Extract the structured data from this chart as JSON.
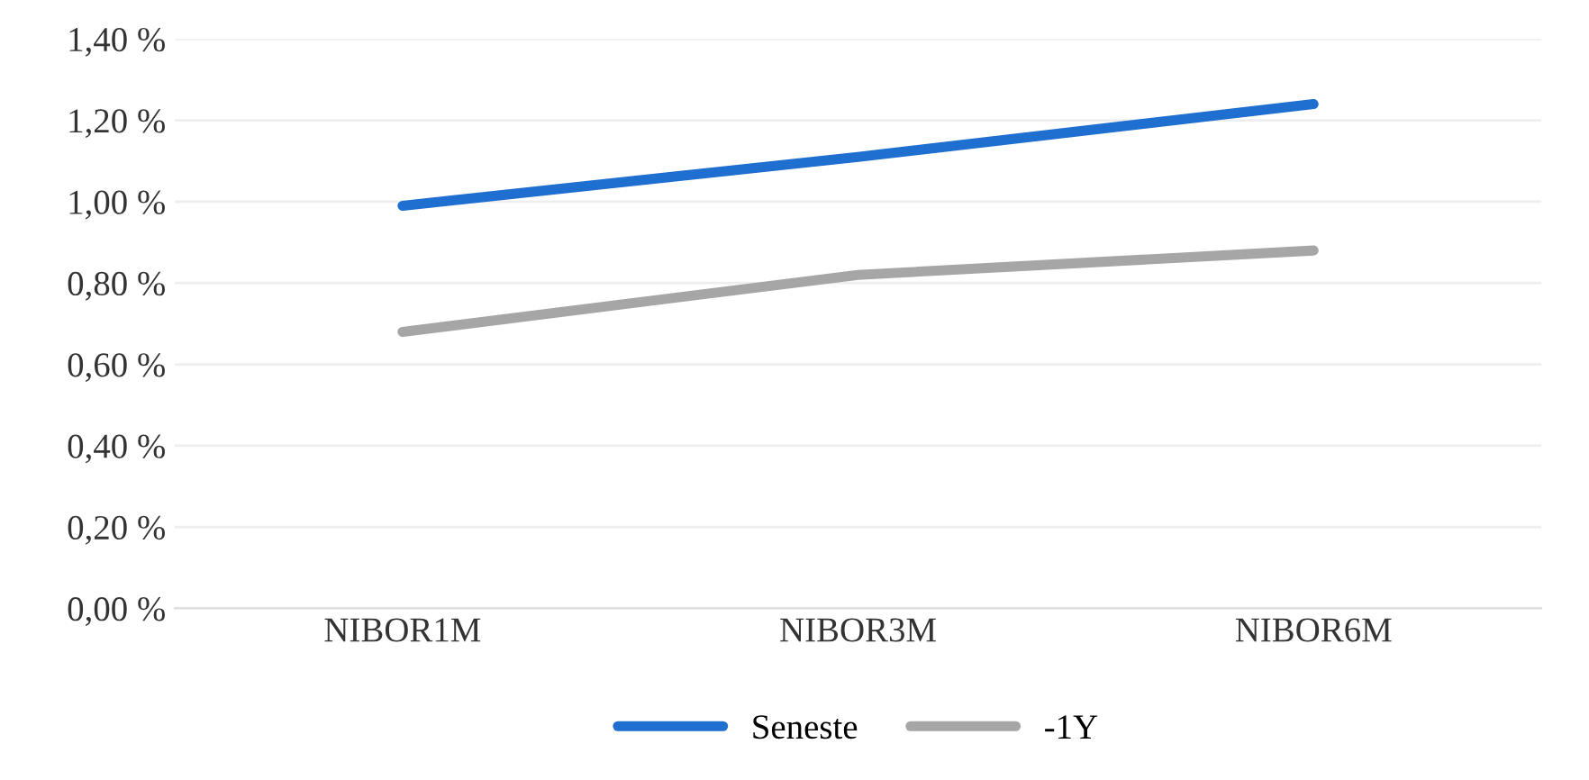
{
  "chart_data": {
    "type": "line",
    "categories": [
      "NIBOR1M",
      "NIBOR3M",
      "NIBOR6M"
    ],
    "series": [
      {
        "name": "Seneste",
        "color": "#1f6fd1",
        "values": [
          0.99,
          1.11,
          1.24
        ]
      },
      {
        "name": "-1Y",
        "color": "#a6a6a6",
        "values": [
          0.68,
          0.82,
          0.88
        ]
      }
    ],
    "ylim": [
      0,
      1.4
    ],
    "yticks": [
      {
        "value": 0,
        "label": "0,00 %"
      },
      {
        "value": 0.2,
        "label": "0,20 %"
      },
      {
        "value": 0.4,
        "label": "0,40 %"
      },
      {
        "value": 0.6,
        "label": "0,60 %"
      },
      {
        "value": 0.8,
        "label": "0,80 %"
      },
      {
        "value": 1.0,
        "label": "1,00 %"
      },
      {
        "value": 1.2,
        "label": "1,20 %"
      },
      {
        "value": 1.4,
        "label": "1,40 %"
      }
    ],
    "grid": "y",
    "legend": "bottom",
    "marker": "none",
    "line_style": "solid"
  }
}
